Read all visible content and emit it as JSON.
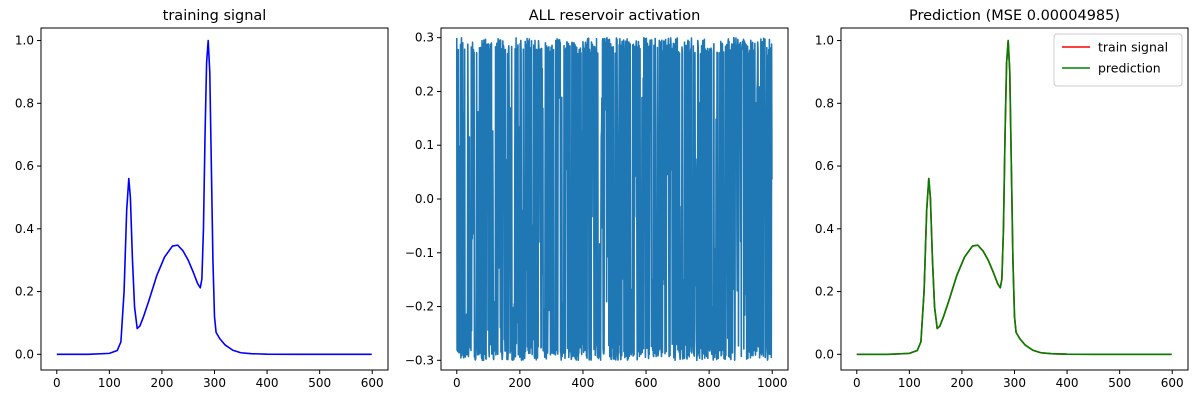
{
  "chart_data": [
    {
      "type": "line",
      "title": "training signal",
      "xlabel": "",
      "ylabel": "",
      "xlim": [
        -30,
        630
      ],
      "ylim": [
        -0.05,
        1.04
      ],
      "x_ticks": [
        0,
        100,
        200,
        300,
        400,
        500,
        600
      ],
      "x_tick_labels": [
        "0",
        "100",
        "200",
        "300",
        "400",
        "500",
        "600"
      ],
      "y_ticks": [
        0.0,
        0.2,
        0.4,
        0.6,
        0.8,
        1.0
      ],
      "y_tick_labels": [
        "0.0",
        "0.2",
        "0.4",
        "0.6",
        "0.8",
        "1.0"
      ],
      "grid": false,
      "series": [
        {
          "color": "#0000ff",
          "x": [
            0,
            60,
            100,
            115,
            122,
            128,
            133,
            137,
            140,
            144,
            148,
            153,
            158,
            165,
            175,
            190,
            205,
            220,
            230,
            240,
            250,
            260,
            268,
            273,
            276,
            279,
            282,
            285,
            288,
            291,
            294,
            297,
            300,
            303,
            310,
            320,
            335,
            350,
            370,
            400,
            450,
            500,
            599
          ],
          "y": [
            0,
            0,
            0.003,
            0.012,
            0.04,
            0.2,
            0.46,
            0.56,
            0.5,
            0.3,
            0.15,
            0.082,
            0.09,
            0.12,
            0.17,
            0.25,
            0.31,
            0.345,
            0.348,
            0.33,
            0.3,
            0.26,
            0.225,
            0.212,
            0.24,
            0.4,
            0.7,
            0.93,
            1.0,
            0.9,
            0.6,
            0.3,
            0.12,
            0.07,
            0.05,
            0.03,
            0.013,
            0.005,
            0.002,
            0.0005,
            0,
            0,
            0
          ]
        }
      ]
    },
    {
      "type": "line",
      "title": "ALL reservoir activation",
      "xlabel": "",
      "ylabel": "",
      "xlim": [
        -50,
        1050
      ],
      "ylim": [
        -0.318,
        0.318
      ],
      "x_ticks": [
        0,
        200,
        400,
        600,
        800,
        1000
      ],
      "x_tick_labels": [
        "0",
        "200",
        "400",
        "600",
        "800",
        "1000"
      ],
      "y_ticks": [
        -0.3,
        -0.2,
        -0.1,
        0.0,
        0.1,
        0.2,
        0.3
      ],
      "y_tick_labels": [
        "−0.3",
        "−0.2",
        "−0.1",
        "0.0",
        "0.1",
        "0.2",
        "0.3"
      ],
      "grid": false,
      "series": [
        {
          "color": "#1f77b4",
          "x_range": [
            0,
            999
          ],
          "value_range": [
            -0.3,
            0.3
          ],
          "note_pattern": "dense oscillation"
        }
      ]
    },
    {
      "type": "line",
      "title": "Prediction (MSE 0.00004985)",
      "xlabel": "",
      "ylabel": "",
      "xlim": [
        -30,
        630
      ],
      "ylim": [
        -0.05,
        1.04
      ],
      "x_ticks": [
        0,
        100,
        200,
        300,
        400,
        500,
        600
      ],
      "x_tick_labels": [
        "0",
        "100",
        "200",
        "300",
        "400",
        "500",
        "600"
      ],
      "y_ticks": [
        0.0,
        0.2,
        0.4,
        0.6,
        0.8,
        1.0
      ],
      "y_tick_labels": [
        "0.0",
        "0.2",
        "0.4",
        "0.6",
        "0.8",
        "1.0"
      ],
      "grid": false,
      "legend": "top-right",
      "series": [
        {
          "name": "train signal",
          "color": "#ff0000",
          "x": [
            0,
            60,
            100,
            115,
            122,
            128,
            133,
            137,
            140,
            144,
            148,
            153,
            158,
            165,
            175,
            190,
            205,
            220,
            230,
            240,
            250,
            260,
            268,
            273,
            276,
            279,
            282,
            285,
            288,
            291,
            294,
            297,
            300,
            303,
            310,
            320,
            335,
            350,
            370,
            400,
            450,
            500,
            599
          ],
          "y": [
            0,
            0,
            0.003,
            0.012,
            0.04,
            0.2,
            0.46,
            0.56,
            0.5,
            0.3,
            0.15,
            0.082,
            0.09,
            0.12,
            0.17,
            0.25,
            0.31,
            0.345,
            0.348,
            0.33,
            0.3,
            0.26,
            0.225,
            0.212,
            0.24,
            0.4,
            0.7,
            0.93,
            1.0,
            0.9,
            0.6,
            0.3,
            0.12,
            0.07,
            0.05,
            0.03,
            0.013,
            0.005,
            0.002,
            0.0005,
            0,
            0,
            0
          ]
        },
        {
          "name": "prediction",
          "color": "#008000",
          "x": [
            0,
            60,
            100,
            115,
            122,
            128,
            133,
            137,
            140,
            144,
            148,
            153,
            158,
            165,
            175,
            190,
            205,
            220,
            230,
            240,
            250,
            260,
            268,
            273,
            276,
            279,
            282,
            285,
            288,
            291,
            294,
            297,
            300,
            303,
            310,
            320,
            335,
            350,
            370,
            400,
            450,
            500,
            599
          ],
          "y": [
            0,
            0,
            0.003,
            0.012,
            0.04,
            0.2,
            0.46,
            0.56,
            0.5,
            0.3,
            0.15,
            0.082,
            0.09,
            0.12,
            0.17,
            0.25,
            0.31,
            0.345,
            0.348,
            0.33,
            0.3,
            0.26,
            0.225,
            0.212,
            0.24,
            0.4,
            0.7,
            0.93,
            1.0,
            0.9,
            0.6,
            0.3,
            0.12,
            0.07,
            0.05,
            0.03,
            0.013,
            0.005,
            0.002,
            0.0005,
            0,
            0,
            0
          ]
        }
      ]
    }
  ]
}
